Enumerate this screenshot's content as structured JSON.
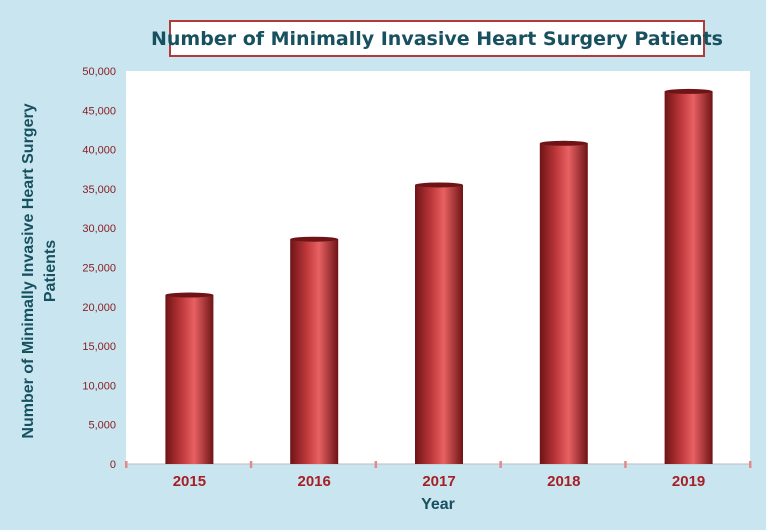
{
  "chart_data": {
    "type": "bar",
    "title": "Number of Minimally Invasive Heart Surgery Patients",
    "xlabel": "Year",
    "ylabel_lines": [
      "Number of Minimally  Invasive Heart Surgery",
      "Patients"
    ],
    "categories": [
      "2015",
      "2016",
      "2017",
      "2018",
      "2019"
    ],
    "values": [
      21500,
      28600,
      35500,
      40800,
      47400
    ],
    "ylim": [
      0,
      50000
    ],
    "y_ticks": [
      "0",
      "5,000",
      "10,000",
      "15,000",
      "20,000",
      "25,000",
      "30,000",
      "35,000",
      "40,000",
      "45,000",
      "50,000"
    ],
    "grid": false,
    "legend": "none",
    "colors": {
      "bar": "#c0393c",
      "bar_dark": "#6e1416",
      "bar_light": "#e86163",
      "title_text": "#17505f",
      "title_border": "#b23a3a",
      "axis_label": "#17505f",
      "category_label": "#a51f24",
      "tick_label": "#8a1e22",
      "tick_marks": "#e28a8a",
      "background": "#c9e6f0",
      "plot_background": "#ffffff"
    }
  }
}
